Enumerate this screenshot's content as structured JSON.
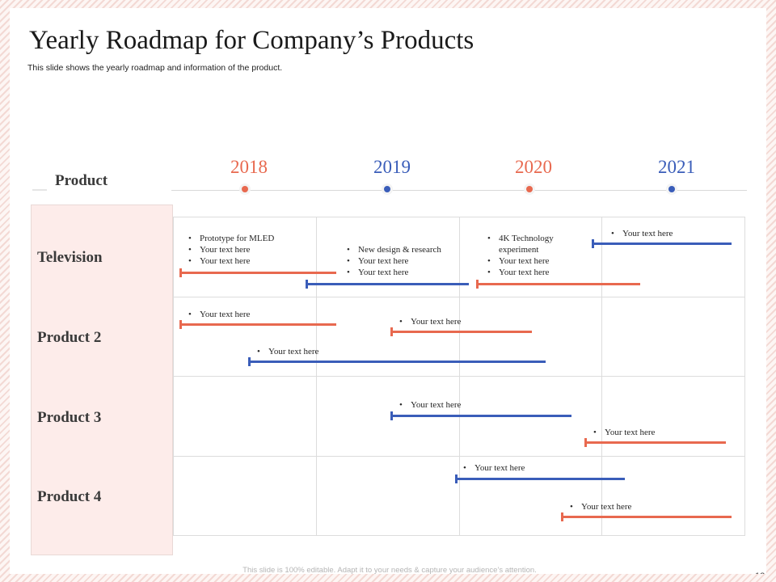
{
  "title": "Yearly Roadmap for Company’s Products",
  "subtitle": "This slide shows the yearly roadmap and information of the product.",
  "product_header": "Product",
  "colors": {
    "orange": "#e8694f",
    "blue": "#3a5db9",
    "panel": "#fdecea"
  },
  "years": [
    {
      "label": "2018",
      "color": "#e8694f"
    },
    {
      "label": "2019",
      "color": "#3a5db9"
    },
    {
      "label": "2020",
      "color": "#e8694f"
    },
    {
      "label": "2021",
      "color": "#3a5db9"
    }
  ],
  "rows": [
    "Television",
    "Product 2",
    "Product 3",
    "Product 4"
  ],
  "roadmap_items": [
    {
      "product": "Television",
      "color": "orange",
      "bullets": [
        "Prototype for MLED",
        "Your text here",
        "Your text here"
      ]
    },
    {
      "product": "Television",
      "color": "blue",
      "bullets": [
        "New design & research",
        "Your text here",
        "Your text here"
      ]
    },
    {
      "product": "Television",
      "color": "orange",
      "bullets": [
        "4K Technology",
        "experiment",
        "Your text here",
        "Your text here"
      ]
    },
    {
      "product": "Television",
      "color": "blue",
      "bullets": [
        "Your text here"
      ]
    },
    {
      "product": "Product 2",
      "color": "orange",
      "bullets": [
        "Your text here"
      ]
    },
    {
      "product": "Product 2",
      "color": "orange",
      "bullets": [
        "Your text here"
      ]
    },
    {
      "product": "Product 2",
      "color": "blue",
      "bullets": [
        "Your text here"
      ]
    },
    {
      "product": "Product 3",
      "color": "blue",
      "bullets": [
        "Your text here"
      ]
    },
    {
      "product": "Product 3",
      "color": "orange",
      "bullets": [
        "Your text here"
      ]
    },
    {
      "product": "Product 4",
      "color": "blue",
      "bullets": [
        "Your text here"
      ]
    },
    {
      "product": "Product 4",
      "color": "orange",
      "bullets": [
        "Your text here"
      ]
    }
  ],
  "footer": "This slide is 100% editable. Adapt it to your needs & capture your audience’s attention.",
  "page_number": "12"
}
